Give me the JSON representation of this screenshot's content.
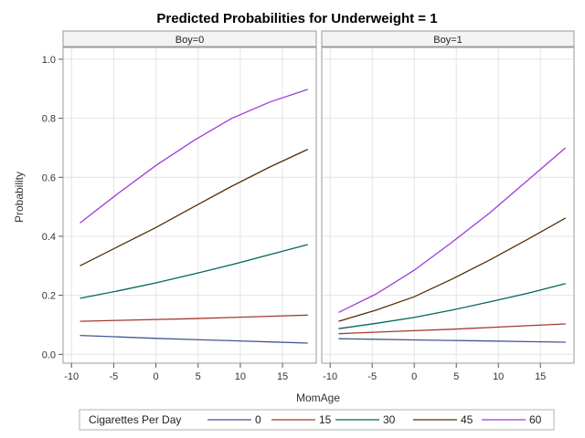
{
  "chart_data": {
    "type": "line",
    "title": "Predicted Probabilities for Underweight = 1",
    "xlabel": "MomAge",
    "ylabel": "Probability",
    "xlim": [
      -11,
      19
    ],
    "ylim": [
      -0.03,
      1.04
    ],
    "xticks": [
      -10,
      -5,
      0,
      5,
      10,
      15
    ],
    "yticks": [
      0.0,
      0.2,
      0.4,
      0.6,
      0.8,
      1.0
    ],
    "ytick_labels": [
      "0.0",
      "0.2",
      "0.4",
      "0.6",
      "0.8",
      "1.0"
    ],
    "grid": true,
    "legend": {
      "title": "Cigarettes Per Day",
      "placement": "bottom",
      "entries": [
        "0",
        "15",
        "30",
        "45",
        "60"
      ]
    },
    "panels": [
      {
        "label": "Boy=0",
        "x": [
          -9,
          -4.5,
          0,
          4.5,
          9,
          13.5,
          18
        ],
        "series": [
          {
            "name": "0",
            "color": "#445694",
            "values": [
              0.064,
              0.059,
              0.054,
              0.05,
              0.046,
              0.042,
              0.038
            ]
          },
          {
            "name": "15",
            "color": "#a23a2e",
            "values": [
              0.112,
              0.115,
              0.118,
              0.121,
              0.125,
              0.129,
              0.133
            ]
          },
          {
            "name": "30",
            "color": "#01665e",
            "values": [
              0.19,
              0.215,
              0.242,
              0.272,
              0.304,
              0.338,
              0.372
            ]
          },
          {
            "name": "45",
            "color": "#543005",
            "values": [
              0.3,
              0.365,
              0.43,
              0.5,
              0.57,
              0.635,
              0.695
            ]
          },
          {
            "name": "60",
            "color": "#9d3cdb",
            "values": [
              0.445,
              0.545,
              0.64,
              0.725,
              0.8,
              0.855,
              0.898
            ]
          }
        ]
      },
      {
        "label": "Boy=1",
        "x": [
          -9,
          -4.5,
          0,
          4.5,
          9,
          13.5,
          18
        ],
        "series": [
          {
            "name": "0",
            "color": "#445694",
            "values": [
              0.053,
              0.051,
              0.049,
              0.047,
              0.045,
              0.043,
              0.041
            ]
          },
          {
            "name": "15",
            "color": "#a23a2e",
            "values": [
              0.07,
              0.075,
              0.08,
              0.085,
              0.091,
              0.097,
              0.103
            ]
          },
          {
            "name": "30",
            "color": "#01665e",
            "values": [
              0.087,
              0.105,
              0.125,
              0.15,
              0.178,
              0.207,
              0.24
            ]
          },
          {
            "name": "45",
            "color": "#543005",
            "values": [
              0.112,
              0.15,
              0.195,
              0.255,
              0.32,
              0.39,
              0.462
            ]
          },
          {
            "name": "60",
            "color": "#9d3cdb",
            "values": [
              0.142,
              0.205,
              0.285,
              0.38,
              0.48,
              0.59,
              0.7
            ]
          }
        ]
      }
    ]
  }
}
